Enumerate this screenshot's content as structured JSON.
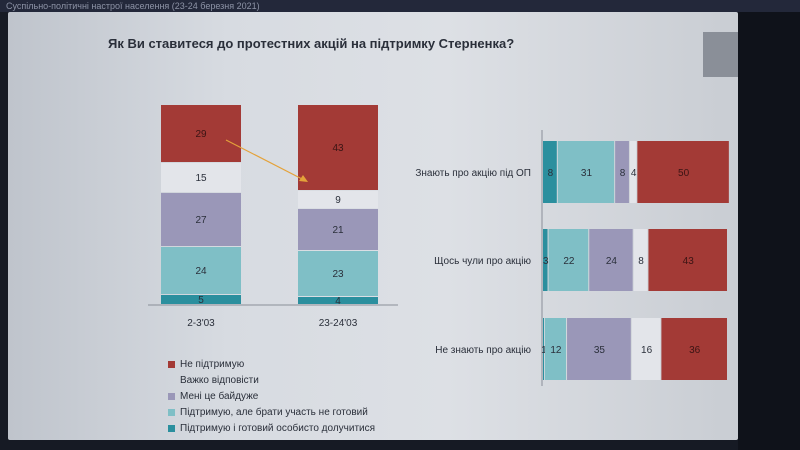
{
  "window": {
    "header_text": "Суспільно-політичні настрої населення (23-24 березня 2021)"
  },
  "slide": {
    "title": "Як Ви ставитеся до протестних акцій на підтримку Стерненка?"
  },
  "colors": {
    "not_support": "#a33a36",
    "hard_to_say": "#e3e5ea",
    "dont_care": "#9a97b8",
    "support_not_ready": "#7fbfc6",
    "support_ready": "#2b8f9e",
    "arrow": "#e4a23a"
  },
  "legend": [
    {
      "label": "Не підтримую",
      "color": "#a33a36"
    },
    {
      "label": "Важко відповісти",
      "color": ""
    },
    {
      "label": "Мені це байдуже",
      "color": "#9a97b8"
    },
    {
      "label": "Підтримую, але брати участь не готовий",
      "color": "#7fbfc6"
    },
    {
      "label": "Підтримую і готовий особисто долучитися",
      "color": "#2b8f9e"
    }
  ],
  "chart_data": [
    {
      "type": "bar",
      "stacked": true,
      "categories": [
        "2-3'03",
        "23-24'03"
      ],
      "series": [
        {
          "name": "Підтримую і готовий особисто долучитися",
          "values": [
            5,
            4
          ]
        },
        {
          "name": "Підтримую, але брати участь не готовий",
          "values": [
            24,
            23
          ]
        },
        {
          "name": "Мені це байдуже",
          "values": [
            27,
            21
          ]
        },
        {
          "name": "Важко відповісти",
          "values": [
            15,
            9
          ]
        },
        {
          "name": "Не підтримую",
          "values": [
            29,
            43
          ]
        }
      ]
    },
    {
      "type": "bar",
      "orientation": "horizontal",
      "stacked": true,
      "categories": [
        "Знають про акцію під ОП",
        "Щось чули про акцію",
        "Не знають про акцію"
      ],
      "series": [
        {
          "name": "Підтримую і готовий особисто долучитися",
          "values": [
            8,
            3,
            1
          ]
        },
        {
          "name": "Підтримую, але брати участь не готовий",
          "values": [
            31,
            22,
            12
          ]
        },
        {
          "name": "Мені це байдуже",
          "values": [
            8,
            24,
            35
          ]
        },
        {
          "name": "Важко відповісти",
          "values": [
            4,
            8,
            16
          ]
        },
        {
          "name": "Не підтримую",
          "values": [
            50,
            43,
            36
          ]
        }
      ]
    }
  ]
}
